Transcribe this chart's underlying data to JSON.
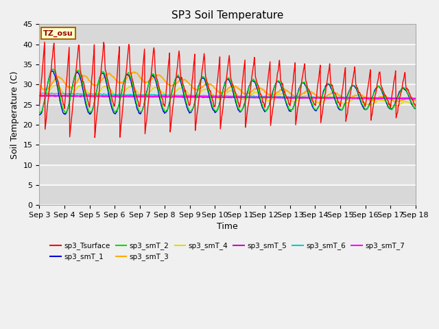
{
  "title": "SP3 Soil Temperature",
  "xlabel": "Time",
  "ylabel": "Soil Temperature (C)",
  "tz_label": "TZ_osu",
  "ylim": [
    0,
    45
  ],
  "yticks": [
    0,
    5,
    10,
    15,
    20,
    25,
    30,
    35,
    40,
    45
  ],
  "x_tick_labels": [
    "Sep 3",
    "Sep 4",
    "Sep 5",
    "Sep 6",
    "Sep 7",
    "Sep 8",
    "Sep 9",
    "Sep 10",
    "Sep 11",
    "Sep 12",
    "Sep 13",
    "Sep 14",
    "Sep 15",
    "Sep 16",
    "Sep 17",
    "Sep 18"
  ],
  "series_colors": {
    "sp3_Tsurface": "#ff0000",
    "sp3_smT_1": "#0000dd",
    "sp3_smT_2": "#00dd00",
    "sp3_smT_3": "#ffaa00",
    "sp3_smT_4": "#dddd00",
    "sp3_smT_5": "#cc00cc",
    "sp3_smT_6": "#00cccc",
    "sp3_smT_7": "#ff00ff"
  },
  "fig_bg": "#f0f0f0",
  "plot_bg": "#d8d8d8",
  "title_fontsize": 11,
  "axis_label_fontsize": 9,
  "tick_label_fontsize": 8
}
